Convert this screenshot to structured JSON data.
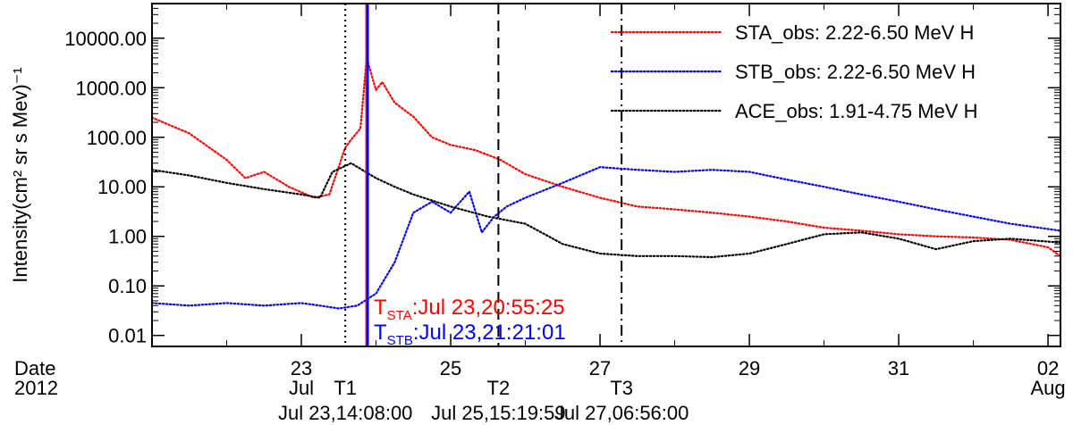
{
  "chart_data": {
    "type": "line",
    "title": "",
    "ylabel": "Intensity(cm² sr s Mev)⁻¹",
    "y_scale": "log",
    "ylim": [
      0.006,
      50000
    ],
    "xlim": [
      "2012-07-21 00:00",
      "2012-08-02 04:00"
    ],
    "y_ticks": [
      {
        "value": 10000,
        "label": "10000.00"
      },
      {
        "value": 1000,
        "label": "1000.00"
      },
      {
        "value": 100,
        "label": "100.00"
      },
      {
        "value": 10,
        "label": "10.00"
      },
      {
        "value": 1,
        "label": "1.00"
      },
      {
        "value": 0.1,
        "label": "0.10"
      },
      {
        "value": 0.01,
        "label": "0.01"
      }
    ],
    "x_ticks": [
      {
        "at": "2012-07-23 00:00",
        "label": "23",
        "sub": "Jul"
      },
      {
        "at": "2012-07-25 00:00",
        "label": "25",
        "sub": ""
      },
      {
        "at": "2012-07-27 00:00",
        "label": "27",
        "sub": ""
      },
      {
        "at": "2012-07-29 00:00",
        "label": "29",
        "sub": ""
      },
      {
        "at": "2012-07-31 00:00",
        "label": "31",
        "sub": ""
      },
      {
        "at": "2012-08-02 00:00",
        "label": "02",
        "sub": "Aug"
      }
    ],
    "x_axis_prefix": {
      "line1": "Date",
      "line2": "2012"
    },
    "legend": {
      "placement": "top-right"
    },
    "series": [
      {
        "name": "STA_obs: 2.22-6.50 MeV H",
        "color": "#ff0000",
        "style": "dotted",
        "x": [
          "2012-07-21 00:00",
          "2012-07-21 12:00",
          "2012-07-22 00:00",
          "2012-07-22 06:00",
          "2012-07-22 12:00",
          "2012-07-22 20:00",
          "2012-07-23 04:00",
          "2012-07-23 09:00",
          "2012-07-23 12:00",
          "2012-07-23 14:00",
          "2012-07-23 16:00",
          "2012-07-23 19:00",
          "2012-07-23 21:00",
          "2012-07-24 00:00",
          "2012-07-24 02:00",
          "2012-07-24 06:00",
          "2012-07-24 12:00",
          "2012-07-24 18:00",
          "2012-07-25 00:00",
          "2012-07-25 08:00",
          "2012-07-25 16:00",
          "2012-07-26 00:00",
          "2012-07-26 12:00",
          "2012-07-27 00:00",
          "2012-07-27 12:00",
          "2012-07-28 00:00",
          "2012-07-28 12:00",
          "2012-07-29 00:00",
          "2012-07-29 12:00",
          "2012-07-30 00:00",
          "2012-07-30 12:00",
          "2012-07-31 00:00",
          "2012-07-31 12:00",
          "2012-08-01 00:00",
          "2012-08-01 12:00",
          "2012-08-02 00:00",
          "2012-08-02 04:00"
        ],
        "y": [
          250,
          120,
          35,
          15,
          20,
          10,
          6,
          7,
          25,
          60,
          90,
          150,
          4000,
          900,
          1300,
          500,
          260,
          100,
          70,
          55,
          35,
          18,
          10,
          6,
          4,
          3.5,
          3,
          2.5,
          2,
          1.5,
          1.3,
          1.1,
          1,
          0.95,
          0.85,
          0.6,
          0.4
        ]
      },
      {
        "name": "STB_obs: 2.22-6.50 MeV H",
        "color": "#0000ff",
        "style": "dotted",
        "x": [
          "2012-07-21 00:00",
          "2012-07-21 12:00",
          "2012-07-22 00:00",
          "2012-07-22 12:00",
          "2012-07-23 00:00",
          "2012-07-23 06:00",
          "2012-07-23 12:00",
          "2012-07-23 18:00",
          "2012-07-24 00:00",
          "2012-07-24 06:00",
          "2012-07-24 12:00",
          "2012-07-24 18:00",
          "2012-07-25 00:00",
          "2012-07-25 06:00",
          "2012-07-25 10:00",
          "2012-07-25 14:00",
          "2012-07-25 18:00",
          "2012-07-26 00:00",
          "2012-07-26 12:00",
          "2012-07-27 00:00",
          "2012-07-27 12:00",
          "2012-07-28 00:00",
          "2012-07-28 12:00",
          "2012-07-29 00:00",
          "2012-07-29 12:00",
          "2012-07-30 00:00",
          "2012-07-30 12:00",
          "2012-07-31 00:00",
          "2012-07-31 12:00",
          "2012-08-01 00:00",
          "2012-08-01 12:00",
          "2012-08-02 04:00"
        ],
        "y": [
          0.045,
          0.04,
          0.045,
          0.04,
          0.045,
          0.04,
          0.035,
          0.04,
          0.07,
          0.3,
          3,
          5,
          3,
          8,
          1.2,
          2.5,
          4,
          6,
          12,
          25,
          22,
          20,
          22,
          20,
          14,
          10,
          7,
          5,
          3.5,
          2.5,
          1.8,
          1.3
        ]
      },
      {
        "name": "ACE_obs: 1.91-4.75 MeV H",
        "color": "#000000",
        "style": "dotted",
        "x": [
          "2012-07-21 00:00",
          "2012-07-21 12:00",
          "2012-07-22 00:00",
          "2012-07-22 12:00",
          "2012-07-23 00:00",
          "2012-07-23 06:00",
          "2012-07-23 10:00",
          "2012-07-23 16:00",
          "2012-07-24 00:00",
          "2012-07-24 06:00",
          "2012-07-24 12:00",
          "2012-07-25 00:00",
          "2012-07-25 12:00",
          "2012-07-26 00:00",
          "2012-07-26 12:00",
          "2012-07-27 00:00",
          "2012-07-27 12:00",
          "2012-07-28 00:00",
          "2012-07-28 12:00",
          "2012-07-29 00:00",
          "2012-07-29 12:00",
          "2012-07-30 00:00",
          "2012-07-30 12:00",
          "2012-07-31 00:00",
          "2012-07-31 12:00",
          "2012-08-01 00:00",
          "2012-08-01 12:00",
          "2012-08-02 04:00"
        ],
        "y": [
          22,
          17,
          12,
          9,
          7,
          6,
          20,
          30,
          15,
          10,
          7,
          4,
          2.5,
          1.8,
          0.7,
          0.45,
          0.4,
          0.4,
          0.38,
          0.45,
          0.7,
          1.1,
          1.2,
          0.9,
          0.55,
          0.8,
          0.9,
          0.75
        ]
      }
    ],
    "event_lines": [
      {
        "at": "2012-07-23 14:08:00",
        "style": "dotted",
        "color": "#000000",
        "label": "T1",
        "time_label": "Jul 23,14:08:00"
      },
      {
        "at": "2012-07-25 15:19:59",
        "style": "dashed",
        "color": "#000000",
        "label": "T2",
        "time_label": "Jul 25,15:19:59"
      },
      {
        "at": "2012-07-27 06:56:00",
        "style": "dashdot",
        "color": "#000000",
        "label": "T3",
        "time_label": "Jul 27,06:56:00"
      },
      {
        "at": "2012-07-23 20:55:25",
        "style": "solid",
        "color": "#ff0000"
      },
      {
        "at": "2012-07-23 21:21:01",
        "style": "solid",
        "color": "#0000ff"
      }
    ],
    "annotations": [
      {
        "main": "T",
        "sub": "STA",
        "text": ":Jul 23,20:55:25",
        "color": "#ff0000"
      },
      {
        "main": "T",
        "sub": "STB",
        "text": ":Jul 23,21:21:01",
        "color": "#0000ff"
      }
    ]
  }
}
